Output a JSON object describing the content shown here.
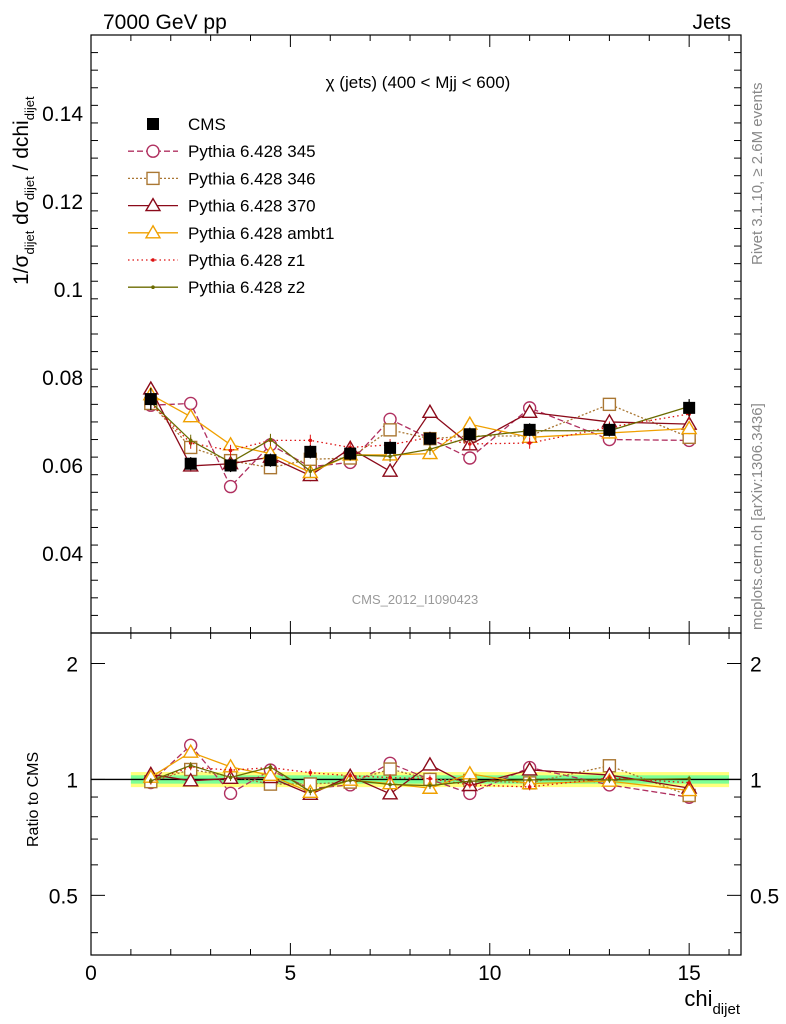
{
  "header": {
    "left": "7000 GeV pp",
    "right": "Jets",
    "plot_title": "χ (jets) (400 < Mjj <  600)",
    "watermark": "CMS_2012_I1090423"
  },
  "side_text": {
    "rivet": "Rivet 3.1.10, ≥ 2.6M events",
    "mcplots": "mcplots.cern.ch [arXiv:1306.3436]"
  },
  "axes": {
    "ylabel_main_prefix": "1/σ",
    "ylabel_main_sub1": "dijet",
    "ylabel_main_mid": " dσ",
    "ylabel_main_sub2": "dijet",
    "ylabel_main_end": " / dchi",
    "ylabel_main_sub3": "dijet",
    "ylabel_ratio": "Ratio to CMS",
    "xlabel_main": "chi",
    "xlabel_sub": "dijet",
    "x_ticks": [
      "0",
      "5",
      "10",
      "15"
    ],
    "y_ticks_main": [
      "0.04",
      "0.06",
      "0.08",
      "0.1",
      "0.12",
      "0.14"
    ],
    "y_ticks_ratio": [
      "0.5",
      "1",
      "2"
    ]
  },
  "chart_data": {
    "type": "line",
    "x_range": [
      0,
      16.3
    ],
    "y_range_main": [
      0.022,
      0.158
    ],
    "y_range_ratio": [
      0.35,
      2.4
    ],
    "ratio_log_scale": true,
    "legend_position": "top-left",
    "x": [
      1.5,
      2.5,
      3.5,
      4.5,
      5.5,
      6.5,
      7.5,
      8.5,
      9.5,
      11,
      13,
      15
    ],
    "reference": {
      "name": "CMS",
      "values": [
        0.0752,
        0.0605,
        0.0601,
        0.0613,
        0.0632,
        0.0628,
        0.0641,
        0.0662,
        0.0672,
        0.0682,
        0.0682,
        0.0732
      ],
      "errors": [
        0.0025,
        0.0015,
        0.0015,
        0.0015,
        0.0015,
        0.0015,
        0.0015,
        0.0015,
        0.0015,
        0.0015,
        0.0015,
        0.002
      ],
      "color": "#000000"
    },
    "ratio_band": {
      "inner": 0.025,
      "outer": 0.045,
      "inner_color": "#66ff99",
      "outer_color": "#ffff66"
    },
    "series": [
      {
        "name": "Pythia 6.428 345",
        "color": "#b03060",
        "dash": "6,3",
        "marker": "circle-open",
        "values": [
          0.0738,
          0.0742,
          0.0553,
          0.0648,
          0.0598,
          0.0608,
          0.0706,
          0.0662,
          0.0618,
          0.0732,
          0.066,
          0.0658
        ]
      },
      {
        "name": "Pythia 6.428 346",
        "color": "#aa7733",
        "dash": "2,2",
        "marker": "square-open",
        "values": [
          0.0742,
          0.0642,
          0.0612,
          0.0596,
          0.0615,
          0.0618,
          0.0682,
          0.0662,
          0.0668,
          0.0668,
          0.074,
          0.0665
        ]
      },
      {
        "name": "Pythia 6.428 370",
        "color": "#8b0a1a",
        "dash": "",
        "marker": "triangle-open",
        "values": [
          0.0775,
          0.06,
          0.0605,
          0.062,
          0.0578,
          0.064,
          0.0588,
          0.0722,
          0.0648,
          0.0722,
          0.07,
          0.0695
        ]
      },
      {
        "name": "Pythia 6.428 ambt1",
        "color": "#f0a000",
        "dash": "",
        "marker": "triangle-open",
        "values": [
          0.0762,
          0.0712,
          0.0648,
          0.0628,
          0.0585,
          0.0625,
          0.0625,
          0.0628,
          0.0695,
          0.0665,
          0.0675,
          0.0685
        ]
      },
      {
        "name": "Pythia 6.428 z1",
        "color": "#dd1111",
        "dash": "1.5,3",
        "marker": "dot",
        "values": [
          0.0742,
          0.0652,
          0.0635,
          0.0658,
          0.0658,
          0.0642,
          0.0648,
          0.0665,
          0.065,
          0.0652,
          0.0688,
          0.0718
        ]
      },
      {
        "name": "Pythia 6.428 z2",
        "color": "#6b6b00",
        "dash": "",
        "marker": "dot",
        "values": [
          0.0745,
          0.0658,
          0.0608,
          0.066,
          0.0588,
          0.0625,
          0.0622,
          0.0638,
          0.0665,
          0.068,
          0.068,
          0.0735
        ]
      }
    ]
  }
}
